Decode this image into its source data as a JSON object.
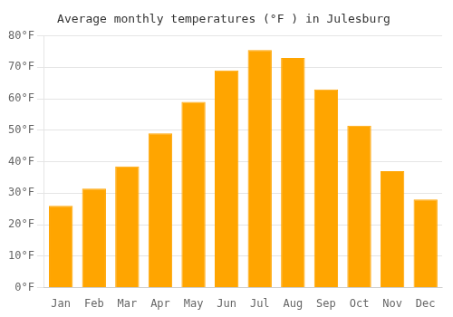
{
  "chart_data": {
    "type": "bar",
    "title": "Average monthly temperatures (°F ) in Julesburg",
    "categories": [
      "Jan",
      "Feb",
      "Mar",
      "Apr",
      "May",
      "Jun",
      "Jul",
      "Aug",
      "Sep",
      "Oct",
      "Nov",
      "Dec"
    ],
    "values": [
      26,
      31.5,
      38.5,
      49,
      59,
      69,
      75.5,
      73,
      63,
      51.5,
      37,
      28
    ],
    "color": "#FFA500",
    "ylim": [
      0,
      80
    ],
    "yticks": [
      {
        "value": 0,
        "label": "0°F"
      },
      {
        "value": 10,
        "label": "10°F"
      },
      {
        "value": 20,
        "label": "20°F"
      },
      {
        "value": 30,
        "label": "30°F"
      },
      {
        "value": 40,
        "label": "40°F"
      },
      {
        "value": 50,
        "label": "50°F"
      },
      {
        "value": 60,
        "label": "60°F"
      },
      {
        "value": 70,
        "label": "70°F"
      },
      {
        "value": 80,
        "label": "80°F"
      }
    ],
    "grid": true
  }
}
